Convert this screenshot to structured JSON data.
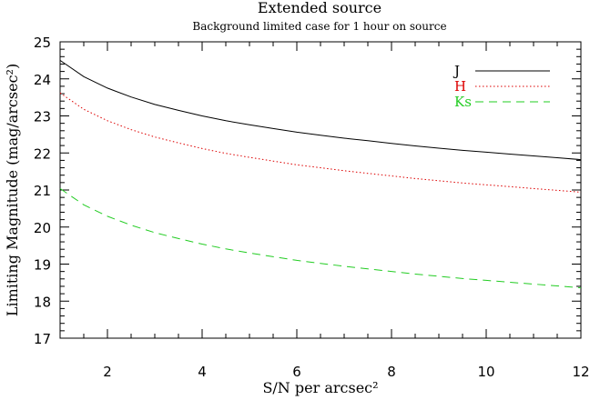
{
  "chart_data": {
    "type": "line",
    "title": "Extended source",
    "subtitle": "Background limited case for 1 hour on source",
    "xlabel": "S/N per arcsec²",
    "ylabel": "Limiting Magnitude (mag/arcsec²)",
    "xlim": [
      1,
      12
    ],
    "ylim": [
      17,
      25
    ],
    "xticks": [
      2,
      4,
      6,
      8,
      10,
      12
    ],
    "yticks": [
      17,
      18,
      19,
      20,
      21,
      22,
      23,
      24,
      25
    ],
    "grid": false,
    "legend_position": "top-right",
    "x": [
      1,
      1.5,
      2,
      2.5,
      3,
      3.5,
      4,
      4.5,
      5,
      5.5,
      6,
      6.5,
      7,
      7.5,
      8,
      8.5,
      9,
      9.5,
      10,
      10.5,
      11,
      11.5,
      12
    ],
    "series": [
      {
        "name": "J",
        "color": "#000000",
        "dash": "solid",
        "values": [
          24.5,
          24.06,
          23.75,
          23.51,
          23.31,
          23.15,
          23.0,
          22.87,
          22.76,
          22.66,
          22.56,
          22.48,
          22.4,
          22.33,
          22.26,
          22.19,
          22.13,
          22.07,
          22.02,
          21.97,
          21.92,
          21.87,
          21.82
        ]
      },
      {
        "name": "H",
        "color": "#dd0000",
        "dash": "dotted",
        "values": [
          23.62,
          23.18,
          22.87,
          22.63,
          22.43,
          22.27,
          22.12,
          21.99,
          21.88,
          21.78,
          21.68,
          21.6,
          21.52,
          21.45,
          21.38,
          21.31,
          21.25,
          21.19,
          21.14,
          21.09,
          21.04,
          20.99,
          20.94
        ]
      },
      {
        "name": "Ks",
        "color": "#22cc22",
        "dash": "dashed",
        "values": [
          21.04,
          20.6,
          20.29,
          20.05,
          19.85,
          19.69,
          19.54,
          19.41,
          19.3,
          19.2,
          19.1,
          19.02,
          18.94,
          18.87,
          18.8,
          18.73,
          18.67,
          18.61,
          18.56,
          18.51,
          18.46,
          18.41,
          18.36
        ]
      }
    ]
  }
}
